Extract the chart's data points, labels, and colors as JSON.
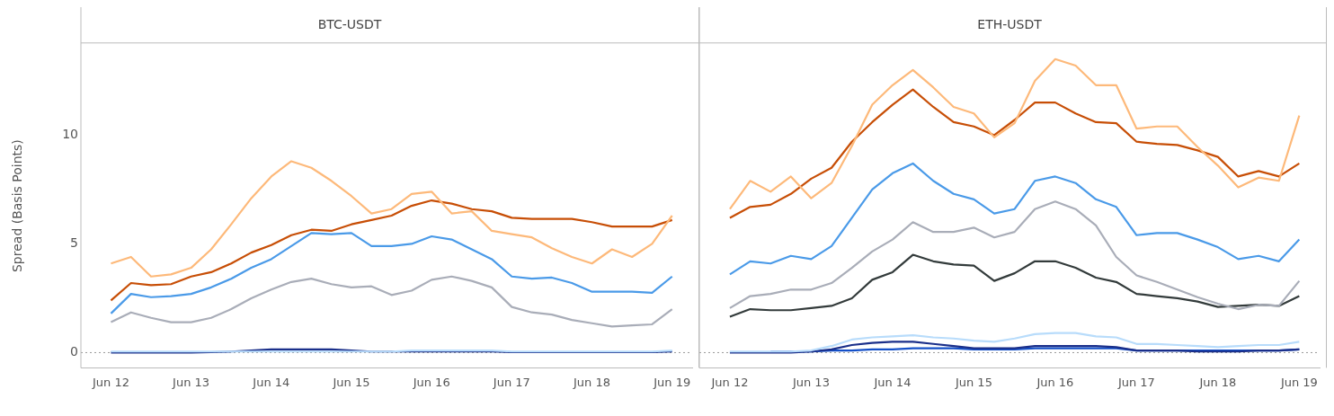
{
  "chart_data": [
    {
      "type": "line",
      "title": "BTC-USDT",
      "ylabel": "Spread (Basis Points)",
      "x": [
        "--06-12T00:00",
        "--06-12T06:00",
        "--06-12T12:00",
        "--06-12T18:00",
        "--06-13T00:00",
        "--06-13T06:00",
        "--06-13T12:00",
        "--06-13T18:00",
        "--06-14T00:00",
        "--06-14T06:00",
        "--06-14T12:00",
        "--06-14T18:00",
        "--06-15T00:00",
        "--06-15T06:00",
        "--06-15T12:00",
        "--06-15T18:00",
        "--06-16T00:00",
        "--06-16T06:00",
        "--06-16T12:00",
        "--06-16T18:00",
        "--06-17T00:00",
        "--06-17T06:00",
        "--06-17T12:00",
        "--06-17T18:00",
        "--06-18T00:00",
        "--06-18T06:00",
        "--06-18T12:00",
        "--06-18T18:00",
        "--06-19T00:00"
      ],
      "xlim": [
        "--06-11T15:00",
        "--06-19T06:00"
      ],
      "xticks": [
        {
          "value": "--06-12",
          "label": "Jun 12"
        },
        {
          "value": "--06-13",
          "label": "Jun 13"
        },
        {
          "value": "--06-14",
          "label": "Jun 14"
        },
        {
          "value": "--06-15",
          "label": "Jun 15"
        },
        {
          "value": "--06-16",
          "label": "Jun 16"
        },
        {
          "value": "--06-17",
          "label": "Jun 17"
        },
        {
          "value": "--06-18",
          "label": "Jun 18"
        },
        {
          "value": "--06-19",
          "label": "Jun 19"
        }
      ],
      "ylim": [
        -0.7,
        14.2
      ],
      "yticks": [
        0,
        5,
        10
      ],
      "grid": false,
      "legend": false,
      "marker": "none",
      "line_style": "solid",
      "ref_lines": [
        {
          "axis": "y",
          "value": 0,
          "color": "#999999",
          "line_style": "dotted"
        }
      ],
      "series": [
        {
          "color": "#fdb97a",
          "values": [
            4.1,
            4.4,
            3.5,
            3.6,
            3.9,
            4.75,
            5.9,
            7.1,
            8.1,
            8.8,
            8.5,
            7.9,
            7.2,
            6.4,
            6.6,
            7.3,
            7.4,
            6.4,
            6.5,
            5.6,
            5.45,
            5.3,
            4.8,
            4.4,
            4.1,
            4.75,
            4.4,
            5.0,
            6.3
          ]
        },
        {
          "color": "#c74e06",
          "values": [
            2.4,
            3.2,
            3.1,
            3.15,
            3.5,
            3.7,
            4.1,
            4.6,
            4.95,
            5.4,
            5.65,
            5.6,
            5.9,
            6.1,
            6.3,
            6.75,
            7.0,
            6.85,
            6.6,
            6.5,
            6.2,
            6.15,
            6.15,
            6.15,
            6.0,
            5.8,
            5.8,
            5.8,
            6.1
          ]
        },
        {
          "color": "#4a9ae8",
          "values": [
            1.8,
            2.7,
            2.55,
            2.6,
            2.7,
            3.0,
            3.4,
            3.9,
            4.3,
            4.9,
            5.5,
            5.45,
            5.5,
            4.9,
            4.9,
            5.0,
            5.35,
            5.2,
            4.75,
            4.3,
            3.5,
            3.4,
            3.45,
            3.2,
            2.8,
            2.8,
            2.8,
            2.75,
            3.5
          ]
        },
        {
          "color": "#a9adb8",
          "values": [
            1.4,
            1.85,
            1.6,
            1.4,
            1.4,
            1.6,
            2.0,
            2.5,
            2.9,
            3.25,
            3.4,
            3.15,
            3.0,
            3.05,
            2.65,
            2.85,
            3.35,
            3.5,
            3.3,
            3.0,
            2.1,
            1.85,
            1.75,
            1.5,
            1.35,
            1.2,
            1.25,
            1.3,
            2.0
          ]
        },
        {
          "color": "#b8dcfb",
          "values": [
            0.05,
            0.05,
            0.05,
            0.05,
            0.05,
            0.05,
            0.05,
            0.05,
            0.05,
            0.05,
            0.05,
            0.05,
            0.05,
            0.05,
            0.05,
            0.1,
            0.1,
            0.1,
            0.1,
            0.1,
            0.05,
            0.05,
            0.05,
            0.05,
            0.05,
            0.05,
            0.05,
            0.05,
            0.1
          ]
        },
        {
          "color": "#1a2f8a",
          "values": [
            0,
            0,
            0,
            0,
            0,
            0.02,
            0.05,
            0.1,
            0.15,
            0.15,
            0.15,
            0.15,
            0.1,
            0.05,
            0.05,
            0.05,
            0.05,
            0.05,
            0.05,
            0.05,
            0.02,
            0.02,
            0.02,
            0.02,
            0.02,
            0.02,
            0.02,
            0.02,
            0.05
          ]
        }
      ]
    },
    {
      "type": "line",
      "title": "ETH-USDT",
      "tick_labels": "x",
      "x": [
        "--06-12T00:00",
        "--06-12T06:00",
        "--06-12T12:00",
        "--06-12T18:00",
        "--06-13T00:00",
        "--06-13T06:00",
        "--06-13T12:00",
        "--06-13T18:00",
        "--06-14T00:00",
        "--06-14T06:00",
        "--06-14T12:00",
        "--06-14T18:00",
        "--06-15T00:00",
        "--06-15T06:00",
        "--06-15T12:00",
        "--06-15T18:00",
        "--06-16T00:00",
        "--06-16T06:00",
        "--06-16T12:00",
        "--06-16T18:00",
        "--06-17T00:00",
        "--06-17T06:00",
        "--06-17T12:00",
        "--06-17T18:00",
        "--06-18T00:00",
        "--06-18T06:00",
        "--06-18T12:00",
        "--06-18T18:00",
        "--06-19T00:00"
      ],
      "xlim": [
        "--06-11T15:00",
        "--06-19T06:00"
      ],
      "xticks": [
        {
          "value": "--06-12",
          "label": "Jun 12"
        },
        {
          "value": "--06-13",
          "label": "Jun 13"
        },
        {
          "value": "--06-14",
          "label": "Jun 14"
        },
        {
          "value": "--06-15",
          "label": "Jun 15"
        },
        {
          "value": "--06-16",
          "label": "Jun 16"
        },
        {
          "value": "--06-17",
          "label": "Jun 17"
        },
        {
          "value": "--06-18",
          "label": "Jun 18"
        },
        {
          "value": "--06-19",
          "label": "Jun 19"
        }
      ],
      "ylim": [
        -0.7,
        14.2
      ],
      "yticks": [
        0,
        5,
        10
      ],
      "grid": false,
      "legend": false,
      "marker": "none",
      "line_style": "solid",
      "ref_lines": [
        {
          "axis": "y",
          "value": 0,
          "color": "#999999",
          "line_style": "dotted"
        }
      ],
      "series": [
        {
          "color": "#fdb97a",
          "values": [
            6.6,
            7.9,
            7.4,
            8.1,
            7.1,
            7.8,
            9.5,
            11.4,
            12.3,
            13.0,
            12.2,
            11.3,
            11.0,
            9.9,
            10.55,
            12.5,
            13.5,
            13.2,
            12.3,
            12.3,
            10.3,
            10.4,
            10.4,
            9.45,
            8.6,
            7.6,
            8.05,
            7.9,
            10.9
          ]
        },
        {
          "color": "#c74e06",
          "values": [
            6.2,
            6.7,
            6.8,
            7.3,
            8.0,
            8.5,
            9.7,
            10.6,
            11.4,
            12.1,
            11.3,
            10.6,
            10.4,
            10.0,
            10.7,
            11.5,
            11.5,
            11.0,
            10.6,
            10.55,
            9.7,
            9.6,
            9.55,
            9.3,
            9.0,
            8.1,
            8.35,
            8.1,
            8.7
          ]
        },
        {
          "color": "#4a9ae8",
          "values": [
            3.6,
            4.2,
            4.1,
            4.45,
            4.3,
            4.9,
            6.2,
            7.5,
            8.25,
            8.7,
            7.9,
            7.3,
            7.05,
            6.4,
            6.6,
            7.9,
            8.1,
            7.8,
            7.05,
            6.7,
            5.4,
            5.5,
            5.5,
            5.2,
            4.85,
            4.3,
            4.45,
            4.2,
            5.2
          ]
        },
        {
          "color": "#a9adb8",
          "values": [
            2.05,
            2.6,
            2.7,
            2.9,
            2.9,
            3.2,
            3.9,
            4.65,
            5.2,
            6.0,
            5.55,
            5.55,
            5.75,
            5.3,
            5.55,
            6.6,
            6.95,
            6.6,
            5.85,
            4.4,
            3.55,
            3.25,
            2.9,
            2.55,
            2.25,
            2.0,
            2.2,
            2.15,
            3.3
          ]
        },
        {
          "color": "#333b3b",
          "values": [
            1.65,
            2.0,
            1.95,
            1.95,
            2.05,
            2.15,
            2.5,
            3.35,
            3.7,
            4.5,
            4.2,
            4.05,
            4.0,
            3.3,
            3.65,
            4.2,
            4.2,
            3.9,
            3.45,
            3.25,
            2.7,
            2.6,
            2.5,
            2.35,
            2.1,
            2.15,
            2.2,
            2.15,
            2.6
          ]
        },
        {
          "color": "#b8dcfb",
          "values": [
            0.05,
            0.05,
            0.05,
            0.05,
            0.1,
            0.3,
            0.6,
            0.7,
            0.75,
            0.8,
            0.7,
            0.65,
            0.55,
            0.5,
            0.65,
            0.85,
            0.9,
            0.9,
            0.75,
            0.7,
            0.4,
            0.4,
            0.35,
            0.3,
            0.25,
            0.3,
            0.35,
            0.35,
            0.5
          ]
        },
        {
          "color": "#1a2f8a",
          "values": [
            0,
            0,
            0,
            0,
            0.05,
            0.15,
            0.35,
            0.45,
            0.5,
            0.5,
            0.4,
            0.3,
            0.2,
            0.2,
            0.2,
            0.3,
            0.3,
            0.3,
            0.3,
            0.25,
            0.1,
            0.1,
            0.1,
            0.05,
            0.05,
            0.05,
            0.1,
            0.1,
            0.15
          ]
        },
        {
          "color": "#1450c8",
          "values": [
            null,
            null,
            0.05,
            0.05,
            0.05,
            0.1,
            0.1,
            0.15,
            0.15,
            0.2,
            0.2,
            0.2,
            0.15,
            0.15,
            0.15,
            0.2,
            0.2,
            0.2,
            0.2,
            0.2,
            0.1,
            0.1,
            0.1,
            0.1,
            0.1,
            0.1,
            0.1,
            0.1,
            0.15
          ]
        }
      ]
    }
  ]
}
